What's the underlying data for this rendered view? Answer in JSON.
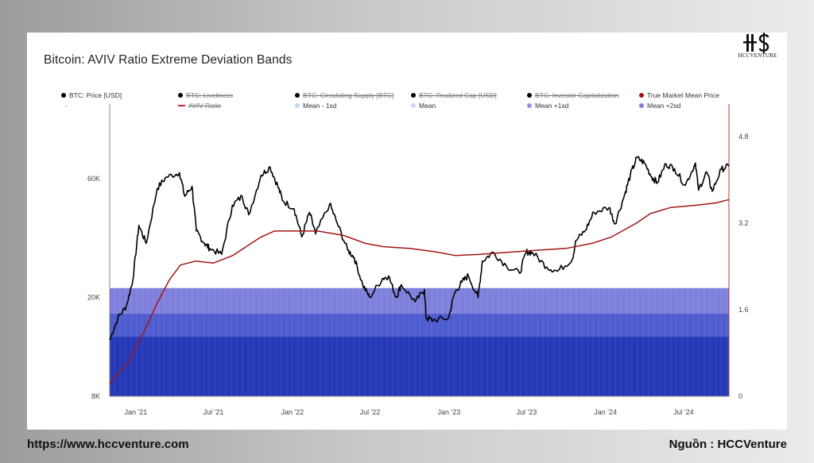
{
  "page": {
    "website": "https://www.hccventure.com",
    "source": "Nguồn : HCCVenture",
    "logo": {
      "glyph": "H$",
      "name": "HCCVENTURE"
    }
  },
  "chart_data": {
    "type": "line",
    "title": "Bitcoin: AVIV Ratio Extreme Deviation Bands",
    "x_tick_labels": [
      "Jan '21",
      "Jul '21",
      "Jan '22",
      "Jul '22",
      "Jan '23",
      "Jul '23",
      "Jan '24",
      "Jul '24"
    ],
    "x_range": [
      "2020-11-01",
      "2024-10-15"
    ],
    "y_left": {
      "scale": "log",
      "range": [
        8000,
        120000
      ],
      "tick_labels": [
        "8K",
        "20K",
        "60K"
      ],
      "ticks": [
        8000,
        20000,
        60000
      ]
    },
    "y_right": {
      "scale": "linear",
      "range": [
        0,
        5.4
      ],
      "tick_labels": [
        "0",
        "1.6",
        "3.2",
        "4.8"
      ],
      "ticks": [
        0,
        1.6,
        3.2,
        4.8
      ]
    },
    "legend": [
      {
        "name": "BTC: Price [USD]",
        "color": "#000000",
        "marker": "dot",
        "visible": true
      },
      {
        "name": "BTC: Liveliness",
        "color": "#000000",
        "marker": "dot",
        "visible": false
      },
      {
        "name": "BTC: Circulating Supply [BTC]",
        "color": "#000000",
        "marker": "dot",
        "visible": false
      },
      {
        "name": "BTC: Realized Cap [USD]",
        "color": "#000000",
        "marker": "dot",
        "visible": false
      },
      {
        "name": "BTC: Investor Capitalization",
        "color": "#000000",
        "marker": "dot",
        "visible": false
      },
      {
        "name": "True Market Mean Price",
        "color": "#a31515",
        "marker": "dot",
        "visible": true
      },
      {
        "name": "-",
        "color": "",
        "marker": "none",
        "visible": true
      },
      {
        "name": "AVIV Ratio",
        "color": "#c62828",
        "marker": "dash",
        "visible": false
      },
      {
        "name": "Mean - 1sd",
        "color": "#bcd9ee",
        "marker": "dot",
        "visible": true
      },
      {
        "name": "Mean",
        "color": "#c9d8ec",
        "marker": "dot",
        "visible": true
      },
      {
        "name": "Mean +1sd",
        "color": "#8a95e0",
        "marker": "dot",
        "visible": true
      },
      {
        "name": "Mean +2sd",
        "color": "#7f7fdd",
        "marker": "dot",
        "visible": true
      }
    ],
    "series": [
      {
        "name": "BTC: Price [USD]",
        "axis": "left",
        "color": "#000000",
        "x": [
          "2020-11-01",
          "2020-11-20",
          "2020-12-10",
          "2020-12-25",
          "2021-01-08",
          "2021-01-25",
          "2021-02-20",
          "2021-03-13",
          "2021-04-13",
          "2021-04-25",
          "2021-05-12",
          "2021-05-22",
          "2021-06-10",
          "2021-06-22",
          "2021-07-20",
          "2021-08-14",
          "2021-09-06",
          "2021-09-21",
          "2021-10-20",
          "2021-11-10",
          "2021-11-28",
          "2021-12-10",
          "2022-01-05",
          "2022-01-23",
          "2022-02-10",
          "2022-02-24",
          "2022-03-29",
          "2022-04-15",
          "2022-05-10",
          "2022-05-25",
          "2022-06-14",
          "2022-06-30",
          "2022-07-30",
          "2022-08-13",
          "2022-08-31",
          "2022-09-12",
          "2022-10-15",
          "2022-11-05",
          "2022-11-09",
          "2022-11-25",
          "2022-12-31",
          "2023-01-14",
          "2023-01-31",
          "2023-02-15",
          "2023-03-10",
          "2023-03-20",
          "2023-04-14",
          "2023-05-15",
          "2023-06-15",
          "2023-06-30",
          "2023-07-15",
          "2023-08-17",
          "2023-09-11",
          "2023-10-16",
          "2023-10-24",
          "2023-11-15",
          "2023-12-05",
          "2024-01-10",
          "2024-01-23",
          "2024-02-15",
          "2024-02-28",
          "2024-03-14",
          "2024-04-01",
          "2024-04-18",
          "2024-05-01",
          "2024-05-21",
          "2024-06-10",
          "2024-07-05",
          "2024-07-29",
          "2024-08-05",
          "2024-08-24",
          "2024-09-06",
          "2024-09-27",
          "2024-10-15"
        ],
        "values": [
          13500,
          16500,
          18500,
          23500,
          39000,
          33000,
          55000,
          61000,
          63500,
          51000,
          56000,
          37000,
          33000,
          31500,
          29800,
          47000,
          51000,
          43000,
          62000,
          67000,
          56000,
          49000,
          45500,
          35000,
          44000,
          36000,
          47500,
          40000,
          31000,
          29000,
          22500,
          20000,
          23800,
          24400,
          20000,
          22500,
          19200,
          21500,
          16500,
          16200,
          16500,
          20800,
          23000,
          24500,
          20000,
          28000,
          30400,
          26800,
          25000,
          30500,
          30300,
          26500,
          25500,
          28500,
          33800,
          37200,
          44000,
          46000,
          39500,
          52000,
          62000,
          73000,
          69500,
          61000,
          58000,
          69000,
          66000,
          56500,
          69500,
          54000,
          64000,
          53500,
          65500,
          67500
        ]
      },
      {
        "name": "True Market Mean Price",
        "axis": "left",
        "color": "#a31515",
        "x": [
          "2020-11-01",
          "2020-12-15",
          "2021-01-15",
          "2021-02-20",
          "2021-03-20",
          "2021-04-15",
          "2021-05-20",
          "2021-07-01",
          "2021-08-15",
          "2021-09-15",
          "2021-10-20",
          "2021-11-20",
          "2021-12-31",
          "2022-03-01",
          "2022-05-01",
          "2022-06-20",
          "2022-08-01",
          "2022-10-01",
          "2022-12-01",
          "2023-01-15",
          "2023-03-15",
          "2023-06-01",
          "2023-08-01",
          "2023-10-01",
          "2023-12-01",
          "2024-01-15",
          "2024-02-15",
          "2024-03-15",
          "2024-04-15",
          "2024-06-01",
          "2024-08-01",
          "2024-09-15",
          "2024-10-15"
        ],
        "values": [
          9000,
          11000,
          14000,
          19000,
          23500,
          27000,
          28000,
          27500,
          29500,
          32000,
          35000,
          37000,
          37000,
          37000,
          35500,
          33000,
          32000,
          31500,
          30500,
          29500,
          29800,
          30500,
          31000,
          31500,
          33000,
          35000,
          37500,
          40000,
          43500,
          46000,
          47000,
          48000,
          49500
        ]
      }
    ],
    "bands": [
      {
        "name": "Mean +2sd",
        "axis": "right",
        "value": 2.0,
        "color": "#7f80dc"
      },
      {
        "name": "Mean +1sd",
        "axis": "right",
        "value": 1.53,
        "color": "#4e5ccf"
      },
      {
        "name": "Mean",
        "axis": "right",
        "value": 1.1,
        "color": "#2438b8"
      },
      {
        "name": "Mean - 1sd",
        "axis": "right",
        "value": 0.0,
        "color": "#1b33b5"
      }
    ],
    "grid": false,
    "legend_position": "top"
  }
}
